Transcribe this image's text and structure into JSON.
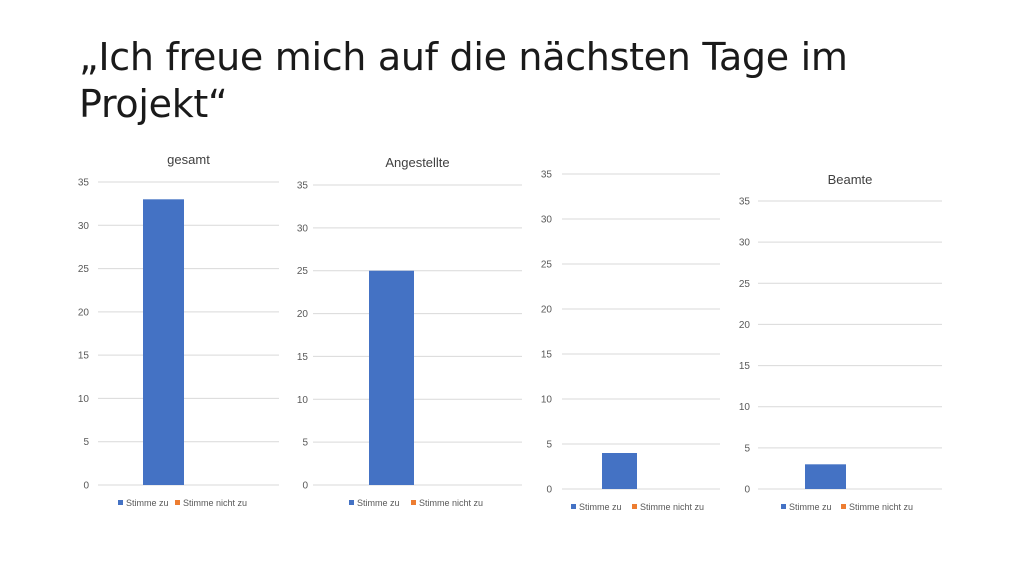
{
  "slide": {
    "title_line1": "„Ich freue mich auf die nächsten Tage im",
    "title_line2": "Projekt“"
  },
  "colors": {
    "series_agree": "#4472C4",
    "series_disagree": "#ED7D31",
    "gridline": "#d9d9d9",
    "text": "#595959",
    "title_text": "#404040"
  },
  "chart_data": [
    {
      "type": "bar",
      "title": "gesamt",
      "categories": [
        ""
      ],
      "series": [
        {
          "name": "Stimme zu",
          "values": [
            33
          ]
        },
        {
          "name": "Stimme nicht zu",
          "values": [
            0
          ]
        }
      ],
      "ylim": [
        0,
        35
      ],
      "yticks": [
        "0",
        "5",
        "10",
        "15",
        "20",
        "25",
        "30",
        "35"
      ],
      "grid": true,
      "legend": "bottom"
    },
    {
      "type": "bar",
      "title": "Angestellte",
      "categories": [
        ""
      ],
      "series": [
        {
          "name": "Stimme zu",
          "values": [
            25
          ]
        },
        {
          "name": "Stimme nicht zu",
          "values": [
            0
          ]
        }
      ],
      "ylim": [
        0,
        35
      ],
      "yticks": [
        "0",
        "5",
        "10",
        "15",
        "20",
        "25",
        "30",
        "35"
      ],
      "grid": true,
      "legend": "bottom"
    },
    {
      "type": "bar",
      "title": "",
      "categories": [
        ""
      ],
      "series": [
        {
          "name": "Stimme zu",
          "values": [
            4
          ]
        },
        {
          "name": "Stimme nicht zu",
          "values": [
            0
          ]
        }
      ],
      "ylim": [
        0,
        35
      ],
      "yticks": [
        "0",
        "5",
        "10",
        "15",
        "20",
        "25",
        "30",
        "35"
      ],
      "grid": true,
      "legend": "bottom"
    },
    {
      "type": "bar",
      "title": "Beamte",
      "categories": [
        ""
      ],
      "series": [
        {
          "name": "Stimme zu",
          "values": [
            3
          ]
        },
        {
          "name": "Stimme nicht zu",
          "values": [
            0
          ]
        }
      ],
      "ylim": [
        0,
        35
      ],
      "yticks": [
        "0",
        "5",
        "10",
        "15",
        "20",
        "25",
        "30",
        "35"
      ],
      "grid": true,
      "legend": "bottom"
    }
  ]
}
